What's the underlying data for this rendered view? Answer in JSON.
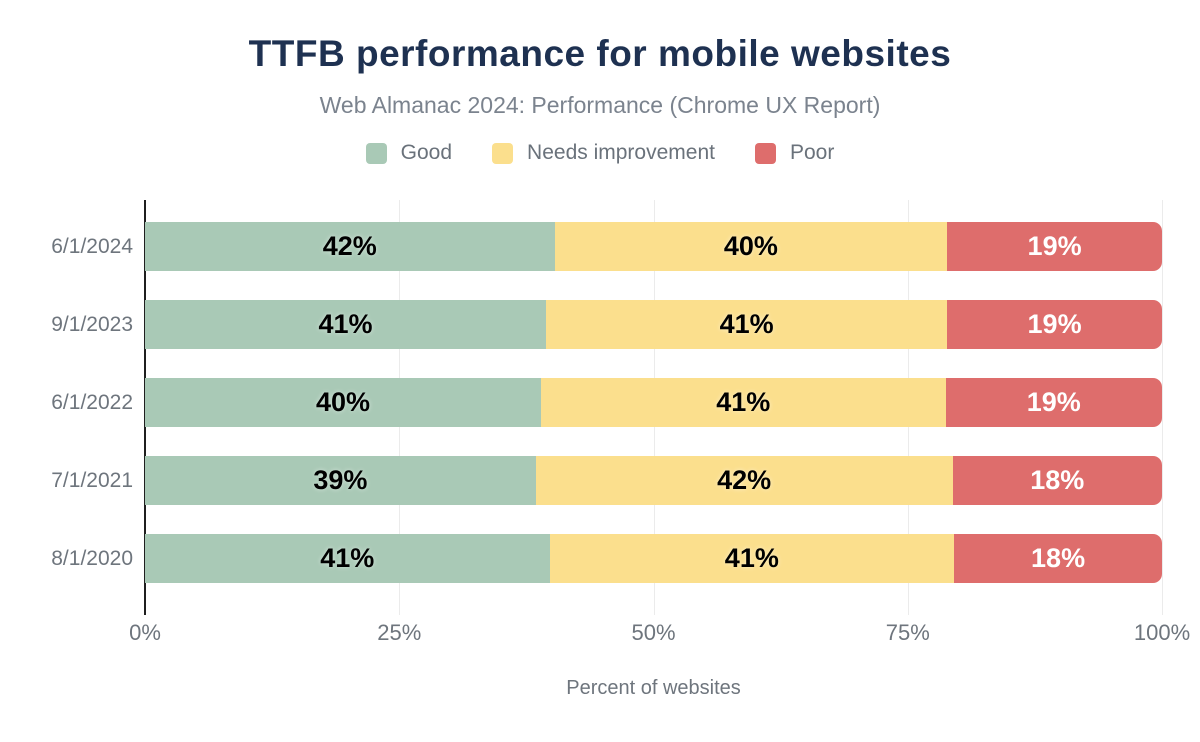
{
  "chart_data": {
    "type": "bar",
    "orientation": "horizontal",
    "stacked": true,
    "title": "TTFB performance for mobile websites",
    "subtitle": "Web Almanac 2024: Performance (Chrome UX Report)",
    "xlabel": "Percent of websites",
    "xlim": [
      0,
      100
    ],
    "grid": "vertical",
    "legend_position": "top",
    "value_suffix": "%",
    "categories": [
      "6/1/2024",
      "9/1/2023",
      "6/1/2022",
      "7/1/2021",
      "8/1/2020"
    ],
    "series": [
      {
        "name": "Good",
        "color": "#a9c9b6",
        "label_color": "#000000",
        "values": [
          42,
          41,
          40,
          39,
          41
        ]
      },
      {
        "name": "Needs improvement",
        "color": "#fbdf8d",
        "label_color": "#000000",
        "values": [
          40,
          41,
          41,
          42,
          41
        ]
      },
      {
        "name": "Poor",
        "color": "#de6d6c",
        "label_color": "#ffffff",
        "values": [
          19,
          19,
          19,
          18,
          18
        ]
      }
    ],
    "x_ticks": [
      {
        "label": "0%",
        "position": 0
      },
      {
        "label": "25%",
        "position": 25
      },
      {
        "label": "50%",
        "position": 50
      },
      {
        "label": "75%",
        "position": 75
      },
      {
        "label": "100%",
        "position": 100
      }
    ]
  },
  "style": {
    "title_color": "#1e3151",
    "subtitle_color": "#7b838e",
    "axis_text_color": "#6e757d",
    "grid_color": "#ebebeb",
    "axis_line_color": "#1f1f1f",
    "background": "#ffffff"
  }
}
